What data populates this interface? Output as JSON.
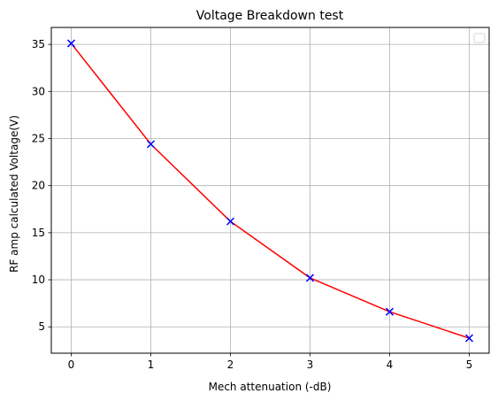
{
  "chart_data": {
    "type": "line",
    "title": "Voltage Breakdown test",
    "xlabel": "Mech attenuation (-dB)",
    "ylabel": "RF amp calculated Voltage(V)",
    "x": [
      0,
      1,
      2,
      3,
      4,
      5
    ],
    "series": [
      {
        "values": [
          35.1,
          24.4,
          16.2,
          10.2,
          6.6,
          3.8
        ],
        "line_color": "#ff0000",
        "marker": "x",
        "marker_color": "#0000ff"
      }
    ],
    "xlim": [
      -0.25,
      5.25
    ],
    "ylim": [
      2.2,
      36.8
    ],
    "xticks": [
      0,
      1,
      2,
      3,
      4,
      5
    ],
    "yticks": [
      5,
      10,
      15,
      20,
      25,
      30,
      35
    ],
    "grid": true,
    "legend": {
      "placement": "upper right",
      "entries": []
    }
  }
}
